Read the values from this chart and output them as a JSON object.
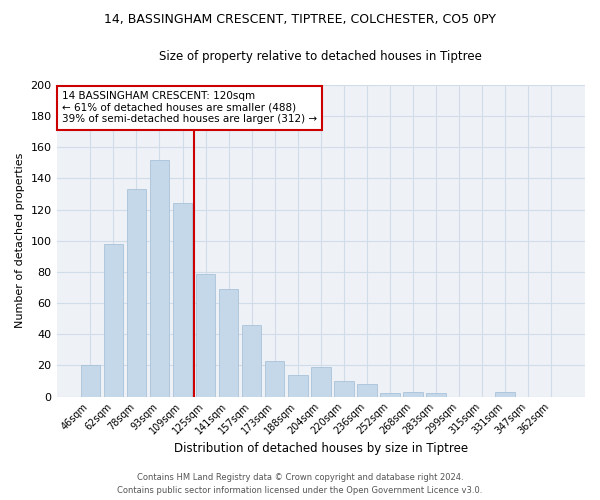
{
  "title1": "14, BASSINGHAM CRESCENT, TIPTREE, COLCHESTER, CO5 0PY",
  "title2": "Size of property relative to detached houses in Tiptree",
  "xlabel": "Distribution of detached houses by size in Tiptree",
  "ylabel": "Number of detached properties",
  "categories": [
    "46sqm",
    "62sqm",
    "78sqm",
    "93sqm",
    "109sqm",
    "125sqm",
    "141sqm",
    "157sqm",
    "173sqm",
    "188sqm",
    "204sqm",
    "220sqm",
    "236sqm",
    "252sqm",
    "268sqm",
    "283sqm",
    "299sqm",
    "315sqm",
    "331sqm",
    "347sqm",
    "362sqm"
  ],
  "values": [
    20,
    98,
    133,
    152,
    124,
    79,
    69,
    46,
    23,
    14,
    19,
    10,
    8,
    2,
    3,
    2,
    0,
    0,
    3,
    0,
    0
  ],
  "highlight_index": 4,
  "bar_color_normal": "#c5d8ea",
  "bar_color_edge": "#a0bdd4",
  "highlight_line_color": "#cc0000",
  "annotation_box_color": "#cc0000",
  "ylim": [
    0,
    200
  ],
  "yticks": [
    0,
    20,
    40,
    60,
    80,
    100,
    120,
    140,
    160,
    180,
    200
  ],
  "annotation_title": "14 BASSINGHAM CRESCENT: 120sqm",
  "annotation_line1": "← 61% of detached houses are smaller (488)",
  "annotation_line2": "39% of semi-detached houses are larger (312) →",
  "footer_line1": "Contains HM Land Registry data © Crown copyright and database right 2024.",
  "footer_line2": "Contains public sector information licensed under the Open Government Licence v3.0.",
  "grid_color": "#d0dce8",
  "background_color": "#eef2f7"
}
